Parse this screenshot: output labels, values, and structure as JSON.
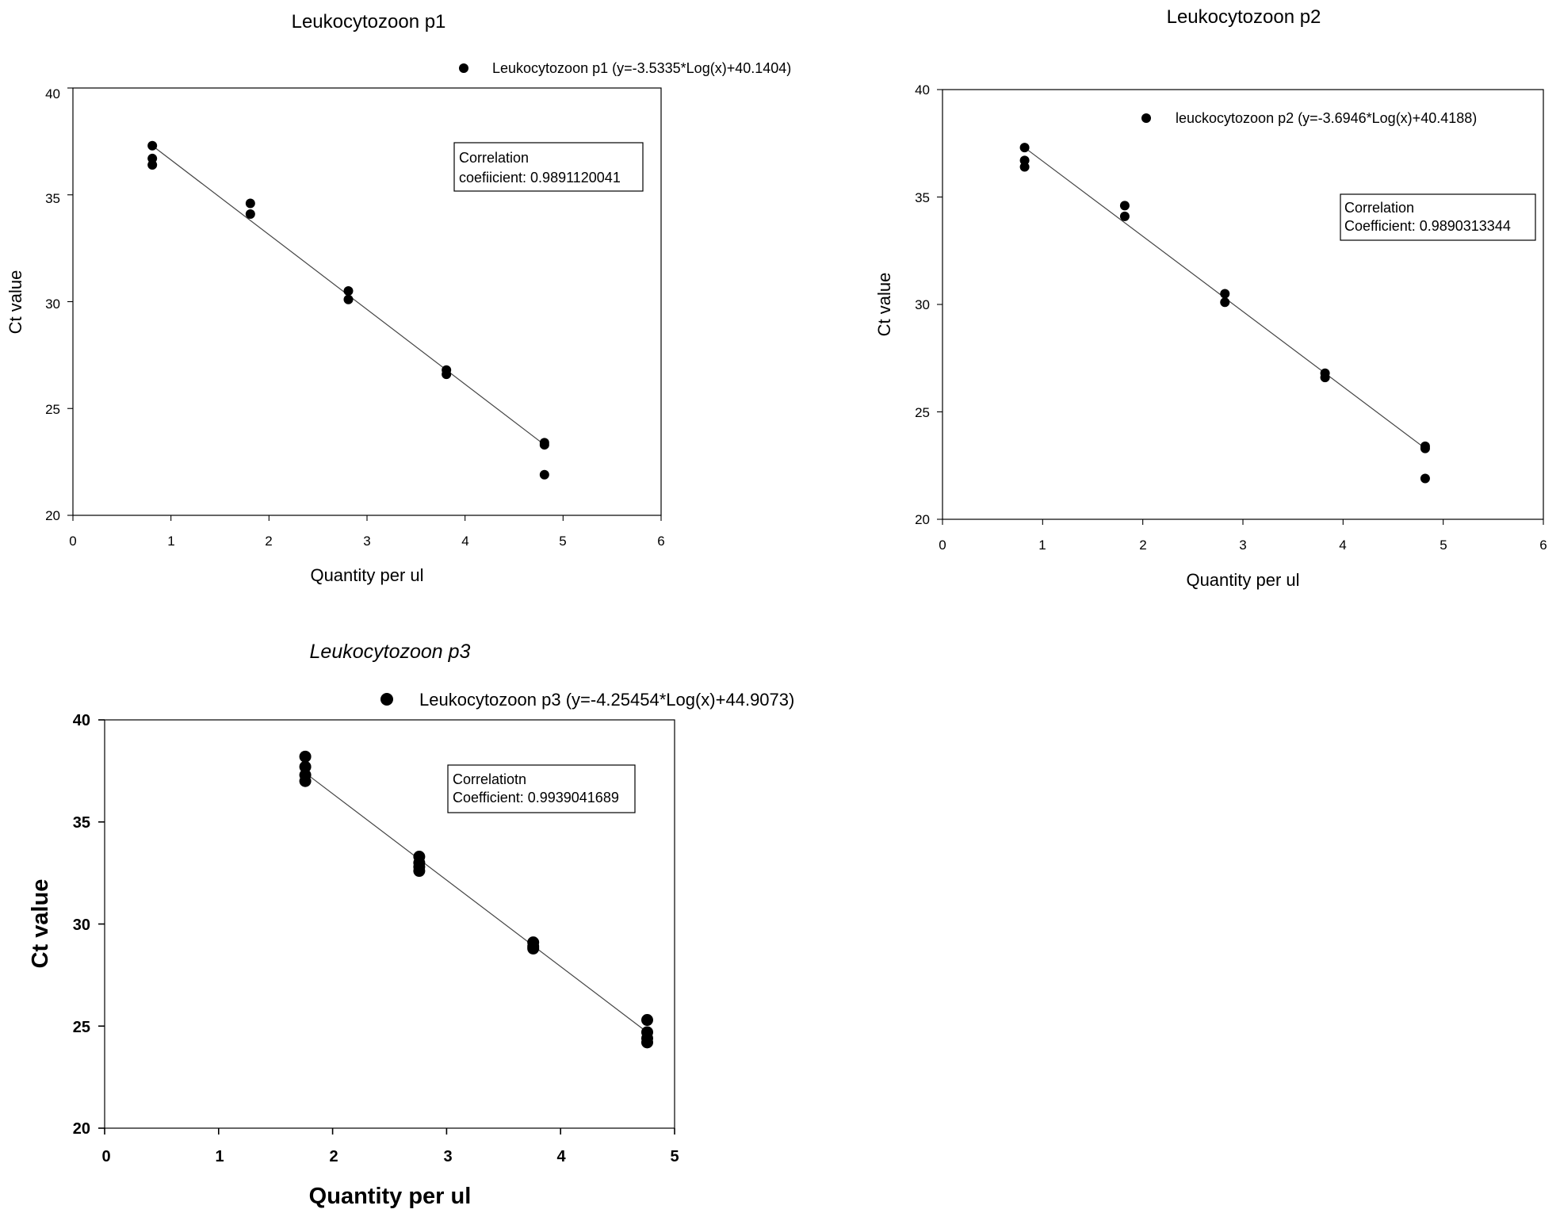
{
  "chart_data": [
    {
      "type": "scatter",
      "title": "Leukocytozoon p1",
      "xlabel": "Quantity per ul",
      "ylabel": "Ct value",
      "xlim": [
        0,
        6
      ],
      "ylim": [
        20,
        40
      ],
      "xticks": [
        "0",
        "1",
        "2",
        "3",
        "4",
        "5",
        "6"
      ],
      "yticks": [
        "20",
        "25",
        "30",
        "35",
        "40"
      ],
      "grid": false,
      "legend_position": "top",
      "legend": "Leukocytozoon p1 (y=-3.5335*Log(x)+40.1404)",
      "annotation": [
        "Correlation",
        "coefiicient: 0.9891120041"
      ],
      "series": [
        {
          "name": "Leukocytozoon p1 (y=-3.5335*Log(x)+40.1404)",
          "x": [
            0.81,
            0.81,
            0.81,
            1.81,
            1.81,
            2.81,
            2.81,
            3.81,
            3.81,
            4.81,
            4.81,
            4.81
          ],
          "y": [
            37.3,
            36.7,
            36.4,
            34.6,
            34.1,
            30.5,
            30.1,
            26.8,
            26.6,
            23.4,
            23.3,
            21.9
          ]
        }
      ],
      "fit_line": {
        "x": [
          0.81,
          4.81
        ],
        "y": [
          37.3,
          23.3
        ]
      }
    },
    {
      "type": "scatter",
      "title": "Leukocytozoon p2",
      "xlabel": "Quantity per ul",
      "ylabel": "Ct value",
      "xlim": [
        0,
        6
      ],
      "ylim": [
        20,
        40
      ],
      "xticks": [
        "0",
        "1",
        "2",
        "3",
        "4",
        "5",
        "6"
      ],
      "yticks": [
        "20",
        "25",
        "30",
        "35",
        "40"
      ],
      "grid": false,
      "legend_position": "top-right",
      "legend": "leuckocytozoon p2 (y=-3.6946*Log(x)+40.4188)",
      "annotation": [
        "Correlation",
        "Coefficient: 0.9890313344"
      ],
      "series": [
        {
          "name": "leuckocytozoon p2 (y=-3.6946*Log(x)+40.4188)",
          "x": [
            0.82,
            0.82,
            0.82,
            1.82,
            1.82,
            2.82,
            2.82,
            3.82,
            3.82,
            4.82,
            4.82,
            4.82
          ],
          "y": [
            37.3,
            36.7,
            36.4,
            34.6,
            34.1,
            30.5,
            30.1,
            26.8,
            26.6,
            23.4,
            23.3,
            21.9
          ]
        }
      ],
      "fit_line": {
        "x": [
          0.82,
          4.82
        ],
        "y": [
          37.3,
          23.3
        ]
      }
    },
    {
      "type": "scatter",
      "title": "Leukocytozoon p3",
      "xlabel": "Quantity per ul",
      "ylabel": "Ct value",
      "xlim": [
        0,
        5
      ],
      "ylim": [
        20,
        40
      ],
      "xticks": [
        "0",
        "1",
        "2",
        "3",
        "4",
        "5"
      ],
      "yticks": [
        "20",
        "25",
        "30",
        "35",
        "40"
      ],
      "grid": false,
      "legend_position": "top",
      "legend": "Leukocytozoon p3 (y=-4.25454*Log(x)+44.9073)",
      "annotation": [
        "Correlatiotn",
        "Coefficient: 0.9939041689"
      ],
      "series": [
        {
          "name": "Leukocytozoon p3 (y=-4.25454*Log(x)+44.9073)",
          "x": [
            1.76,
            1.76,
            1.76,
            1.76,
            2.76,
            2.76,
            2.76,
            2.76,
            3.76,
            3.76,
            3.76,
            4.76,
            4.76,
            4.76,
            4.76
          ],
          "y": [
            38.2,
            37.7,
            37.3,
            37.0,
            33.3,
            33.0,
            32.8,
            32.6,
            29.1,
            28.9,
            28.8,
            25.3,
            24.7,
            24.4,
            24.2
          ]
        }
      ],
      "fit_line": {
        "x": [
          1.76,
          4.76
        ],
        "y": [
          37.4,
          24.7
        ]
      }
    }
  ]
}
